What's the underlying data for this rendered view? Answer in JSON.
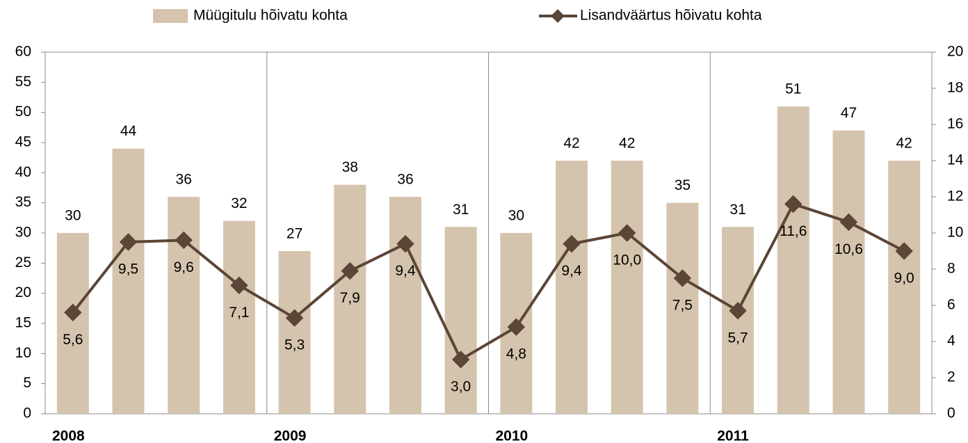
{
  "chart_data": {
    "type": "combo",
    "categories": [
      "2008",
      null,
      null,
      null,
      "2009",
      null,
      null,
      null,
      "2010",
      null,
      null,
      null,
      "2011",
      null,
      null,
      null
    ],
    "series": [
      {
        "name": "Müügitulu hõivatu kohta",
        "type": "bar",
        "color": "#d5c4ad",
        "values": [
          30,
          44,
          36,
          32,
          27,
          38,
          36,
          31,
          30,
          42,
          42,
          35,
          31,
          51,
          47,
          42
        ]
      },
      {
        "name": "Lisandväärtus hõivatu kohta",
        "type": "line",
        "axis": "y2",
        "color": "#5b4536",
        "values": [
          5.6,
          9.5,
          9.6,
          7.1,
          5.3,
          7.9,
          9.4,
          3.0,
          4.8,
          9.4,
          10.0,
          7.5,
          5.7,
          11.6,
          10.6,
          9.0
        ],
        "value_labels": [
          "5,6",
          "9,5",
          "9,6",
          "7,1",
          "5,3",
          "7,9",
          "9,4",
          "3,0",
          "4,8",
          "9,4",
          "10,0",
          "7,5",
          "5,7",
          "11,6",
          "10,6",
          "9,0"
        ]
      }
    ],
    "ylim": [
      0,
      60
    ],
    "yticks": [
      0,
      5,
      10,
      15,
      20,
      25,
      30,
      35,
      40,
      45,
      50,
      55,
      60
    ],
    "y2lim": [
      0,
      20
    ],
    "y2ticks": [
      0,
      2,
      4,
      6,
      8,
      10,
      12,
      14,
      16,
      18,
      20
    ],
    "legend": "top"
  }
}
